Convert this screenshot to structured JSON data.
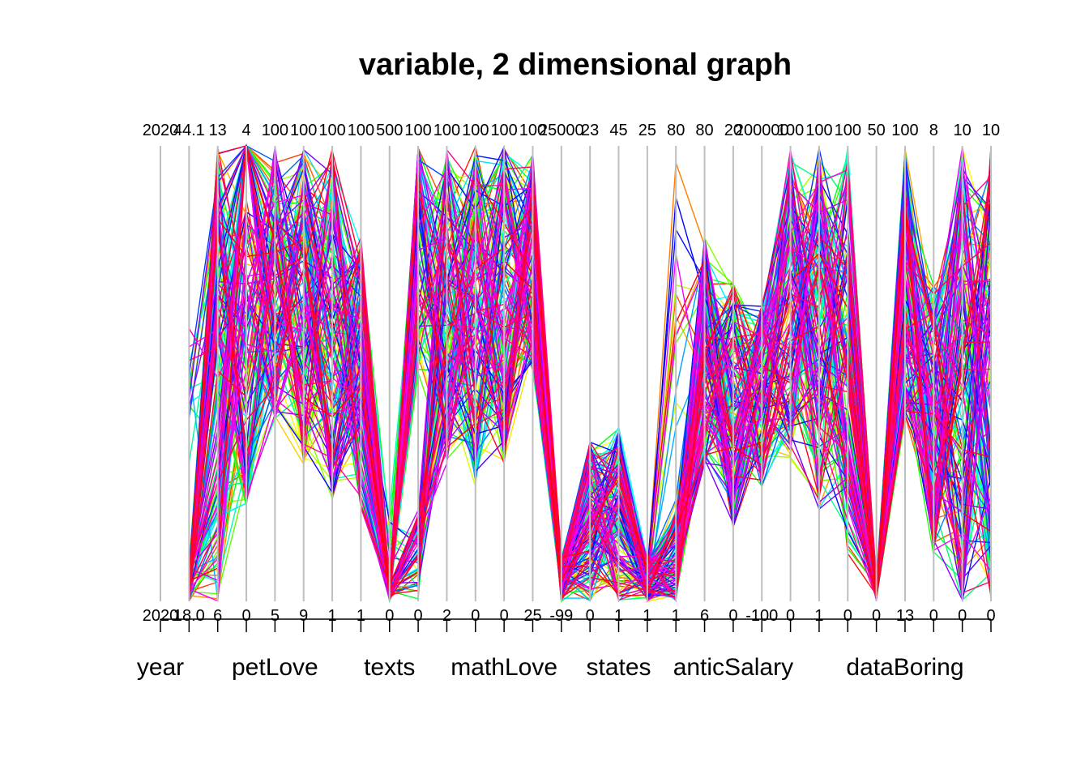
{
  "chart_data": {
    "type": "parallel-coordinates",
    "title": "variable, 2 dimensional graph",
    "axes": [
      {
        "name": "year",
        "max": "2020",
        "min": "2020"
      },
      {
        "name": "",
        "max": "44.1",
        "min": "18.0"
      },
      {
        "name": "",
        "max": "13",
        "min": "6"
      },
      {
        "name": "",
        "max": "4",
        "min": "0"
      },
      {
        "name": "petLove",
        "max": "100",
        "min": "5"
      },
      {
        "name": "",
        "max": "100",
        "min": "9"
      },
      {
        "name": "",
        "max": "100",
        "min": "1"
      },
      {
        "name": "",
        "max": "100",
        "min": "1"
      },
      {
        "name": "texts",
        "max": "500",
        "min": "0"
      },
      {
        "name": "",
        "max": "100",
        "min": "0"
      },
      {
        "name": "",
        "max": "100",
        "min": "2"
      },
      {
        "name": "",
        "max": "100",
        "min": "0"
      },
      {
        "name": "mathLove",
        "max": "100",
        "min": "0"
      },
      {
        "name": "",
        "max": "100",
        "min": "25"
      },
      {
        "name": "",
        "max": "25000",
        "min": "-99"
      },
      {
        "name": "",
        "max": "23",
        "min": "0"
      },
      {
        "name": "states",
        "max": "45",
        "min": "1"
      },
      {
        "name": "",
        "max": "25",
        "min": "1"
      },
      {
        "name": "",
        "max": "80",
        "min": "1"
      },
      {
        "name": "",
        "max": "80",
        "min": "6"
      },
      {
        "name": "anticSalary",
        "max": "20",
        "min": "0"
      },
      {
        "name": "",
        "max": "200000",
        "min": "-100"
      },
      {
        "name": "",
        "max": "100",
        "min": "0"
      },
      {
        "name": "",
        "max": "100",
        "min": "1"
      },
      {
        "name": "",
        "max": "100",
        "min": "0"
      },
      {
        "name": "",
        "max": "50",
        "min": "0"
      },
      {
        "name": "dataBoring",
        "max": "100",
        "min": "13"
      },
      {
        "name": "",
        "max": "8",
        "min": "0"
      },
      {
        "name": "",
        "max": "10",
        "min": "0"
      },
      {
        "name": "",
        "max": "10",
        "min": "0"
      }
    ],
    "series_count": 150,
    "colors": "rainbow",
    "axis_color": "#bebebe"
  }
}
